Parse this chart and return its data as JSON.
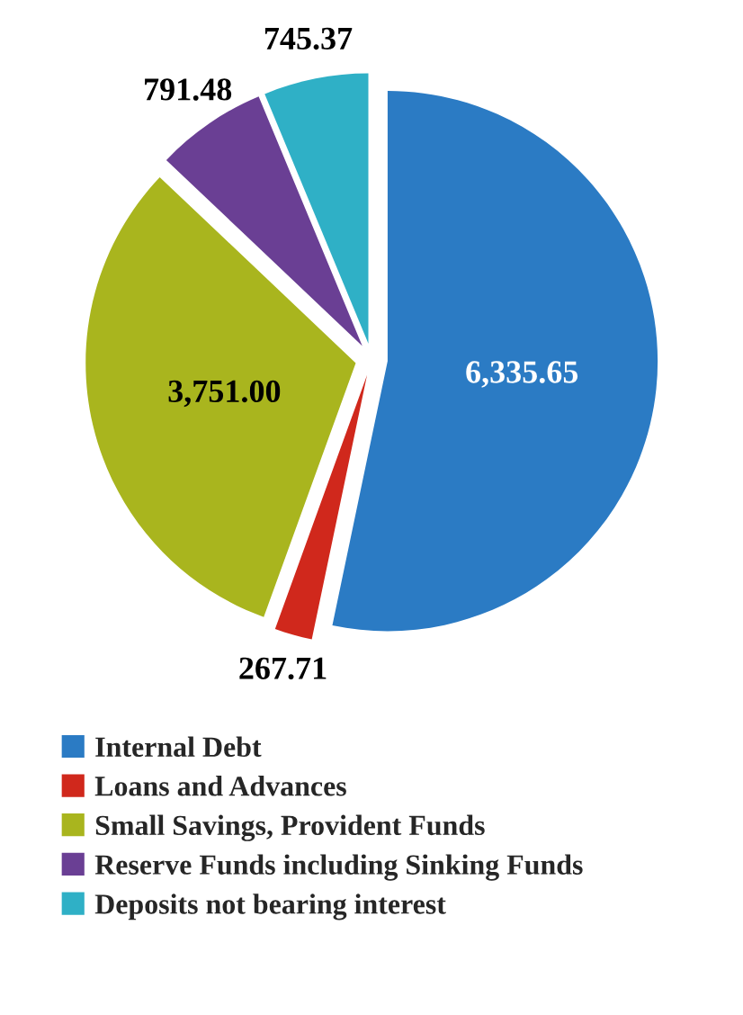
{
  "chart_data": {
    "type": "pie",
    "categories": [
      "Internal Debt",
      "Loans and Advances",
      "Small Savings, Provident Funds",
      "Reserve Funds including Sinking Funds",
      "Deposits not bearing interest"
    ],
    "values": [
      6335.65,
      267.71,
      3751.0,
      791.48,
      745.37
    ],
    "value_labels": [
      "6,335.65",
      "267.71",
      "3,751.00",
      "791.48",
      "745.37"
    ],
    "colors": [
      "#2b7bc4",
      "#d0281c",
      "#a9b51e",
      "#6a3f94",
      "#2fb0c6"
    ],
    "legend": "bottom"
  }
}
